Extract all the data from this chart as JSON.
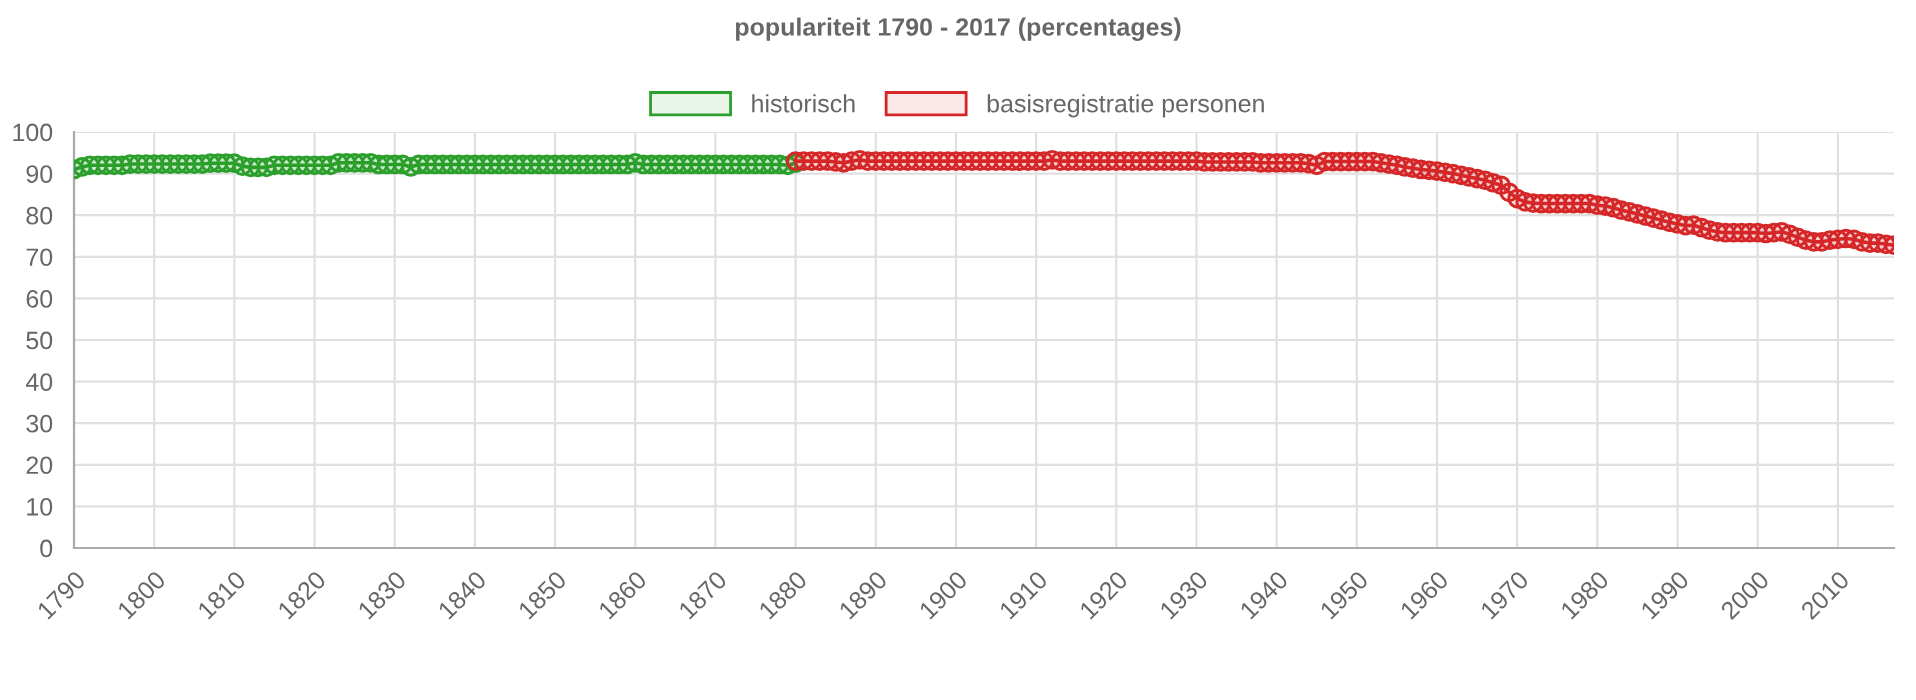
{
  "chart_data": {
    "type": "line",
    "title": "populariteit 1790 - 2017 (percentages)",
    "xlim": [
      1790,
      2017
    ],
    "xticks": [
      1790,
      1800,
      1810,
      1820,
      1830,
      1840,
      1850,
      1860,
      1870,
      1880,
      1890,
      1900,
      1910,
      1920,
      1930,
      1940,
      1950,
      1960,
      1970,
      1980,
      1990,
      2000,
      2010
    ],
    "ylim": [
      0,
      100
    ],
    "yticks": [
      0,
      10,
      20,
      30,
      40,
      50,
      60,
      70,
      80,
      90,
      100
    ],
    "grid": true,
    "legend": "top",
    "marker": "circle",
    "line_style": "solid",
    "series": [
      {
        "name": "historisch",
        "color": "#2ca02c",
        "x": [
          1790,
          1791,
          1792,
          1793,
          1794,
          1795,
          1796,
          1797,
          1798,
          1799,
          1800,
          1801,
          1802,
          1803,
          1804,
          1805,
          1806,
          1807,
          1808,
          1809,
          1810,
          1811,
          1812,
          1813,
          1814,
          1815,
          1816,
          1817,
          1818,
          1819,
          1820,
          1821,
          1822,
          1823,
          1824,
          1825,
          1826,
          1827,
          1828,
          1829,
          1830,
          1831,
          1832,
          1833,
          1834,
          1835,
          1836,
          1837,
          1838,
          1839,
          1840,
          1841,
          1842,
          1843,
          1844,
          1845,
          1846,
          1847,
          1848,
          1849,
          1850,
          1851,
          1852,
          1853,
          1854,
          1855,
          1856,
          1857,
          1858,
          1859,
          1860,
          1861,
          1862,
          1863,
          1864,
          1865,
          1866,
          1867,
          1868,
          1869,
          1870,
          1871,
          1872,
          1873,
          1874,
          1875,
          1876,
          1877,
          1878,
          1879,
          1880
        ],
        "values": [
          91.0,
          91.6,
          92.0,
          92.0,
          92.0,
          92.0,
          92.0,
          92.3,
          92.3,
          92.3,
          92.3,
          92.3,
          92.3,
          92.3,
          92.3,
          92.3,
          92.3,
          92.5,
          92.5,
          92.5,
          92.5,
          91.8,
          91.5,
          91.5,
          91.5,
          92.0,
          92.0,
          92.0,
          92.0,
          92.0,
          92.0,
          92.0,
          92.0,
          92.6,
          92.6,
          92.6,
          92.6,
          92.6,
          92.2,
          92.2,
          92.2,
          92.2,
          91.6,
          92.2,
          92.2,
          92.2,
          92.2,
          92.2,
          92.2,
          92.2,
          92.2,
          92.2,
          92.2,
          92.2,
          92.2,
          92.2,
          92.2,
          92.2,
          92.2,
          92.2,
          92.2,
          92.2,
          92.2,
          92.2,
          92.2,
          92.2,
          92.2,
          92.2,
          92.2,
          92.2,
          92.6,
          92.2,
          92.2,
          92.2,
          92.2,
          92.2,
          92.2,
          92.2,
          92.2,
          92.2,
          92.2,
          92.2,
          92.2,
          92.2,
          92.2,
          92.2,
          92.2,
          92.2,
          92.2,
          92.0,
          92.5
        ]
      },
      {
        "name": "basisregistratie personen",
        "color": "#d62728",
        "x": [
          1880,
          1881,
          1882,
          1883,
          1884,
          1885,
          1886,
          1887,
          1888,
          1889,
          1890,
          1891,
          1892,
          1893,
          1894,
          1895,
          1896,
          1897,
          1898,
          1899,
          1900,
          1901,
          1902,
          1903,
          1904,
          1905,
          1906,
          1907,
          1908,
          1909,
          1910,
          1911,
          1912,
          1913,
          1914,
          1915,
          1916,
          1917,
          1918,
          1919,
          1920,
          1921,
          1922,
          1923,
          1924,
          1925,
          1926,
          1927,
          1928,
          1929,
          1930,
          1931,
          1932,
          1933,
          1934,
          1935,
          1936,
          1937,
          1938,
          1939,
          1940,
          1941,
          1942,
          1943,
          1944,
          1945,
          1946,
          1947,
          1948,
          1949,
          1950,
          1951,
          1952,
          1953,
          1954,
          1955,
          1956,
          1957,
          1958,
          1959,
          1960,
          1961,
          1962,
          1963,
          1964,
          1965,
          1966,
          1967,
          1968,
          1969,
          1970,
          1971,
          1972,
          1973,
          1974,
          1975,
          1976,
          1977,
          1978,
          1979,
          1980,
          1981,
          1982,
          1983,
          1984,
          1985,
          1986,
          1987,
          1988,
          1989,
          1990,
          1991,
          1992,
          1993,
          1994,
          1995,
          1996,
          1997,
          1998,
          1999,
          2000,
          2001,
          2002,
          2003,
          2004,
          2005,
          2006,
          2007,
          2008,
          2009,
          2010,
          2011,
          2012,
          2013,
          2014,
          2015,
          2016,
          2017
        ],
        "values": [
          93.0,
          93.0,
          93.0,
          93.0,
          93.0,
          92.8,
          92.6,
          93.0,
          93.3,
          93.0,
          93.0,
          93.0,
          93.0,
          93.0,
          93.0,
          93.0,
          93.0,
          93.0,
          93.0,
          93.0,
          93.0,
          93.0,
          93.0,
          93.0,
          93.0,
          93.0,
          93.0,
          93.0,
          93.0,
          93.0,
          93.0,
          93.0,
          93.3,
          93.0,
          93.0,
          93.0,
          93.0,
          93.0,
          93.0,
          93.0,
          93.0,
          93.0,
          93.0,
          93.0,
          93.0,
          93.0,
          93.0,
          93.0,
          93.0,
          93.0,
          93.0,
          92.8,
          92.8,
          92.8,
          92.8,
          92.8,
          92.8,
          92.8,
          92.6,
          92.6,
          92.6,
          92.6,
          92.6,
          92.6,
          92.4,
          92.0,
          92.9,
          92.9,
          92.9,
          92.9,
          92.9,
          92.9,
          92.9,
          92.6,
          92.3,
          92.0,
          91.6,
          91.3,
          91.0,
          90.8,
          90.6,
          90.3,
          90.0,
          89.6,
          89.2,
          88.8,
          88.4,
          87.8,
          87.2,
          85.5,
          84.0,
          83.2,
          82.9,
          82.8,
          82.8,
          82.8,
          82.8,
          82.8,
          82.8,
          82.8,
          82.4,
          82.2,
          81.8,
          81.2,
          80.8,
          80.3,
          79.8,
          79.3,
          78.8,
          78.3,
          77.9,
          77.5,
          77.6,
          77.0,
          76.4,
          76.0,
          75.8,
          75.8,
          75.8,
          75.8,
          75.8,
          75.6,
          75.8,
          76.0,
          75.4,
          74.7,
          74.0,
          73.6,
          73.6,
          74.0,
          74.2,
          74.4,
          74.2,
          73.6,
          73.3,
          73.3,
          73.0,
          72.8
        ]
      }
    ]
  }
}
